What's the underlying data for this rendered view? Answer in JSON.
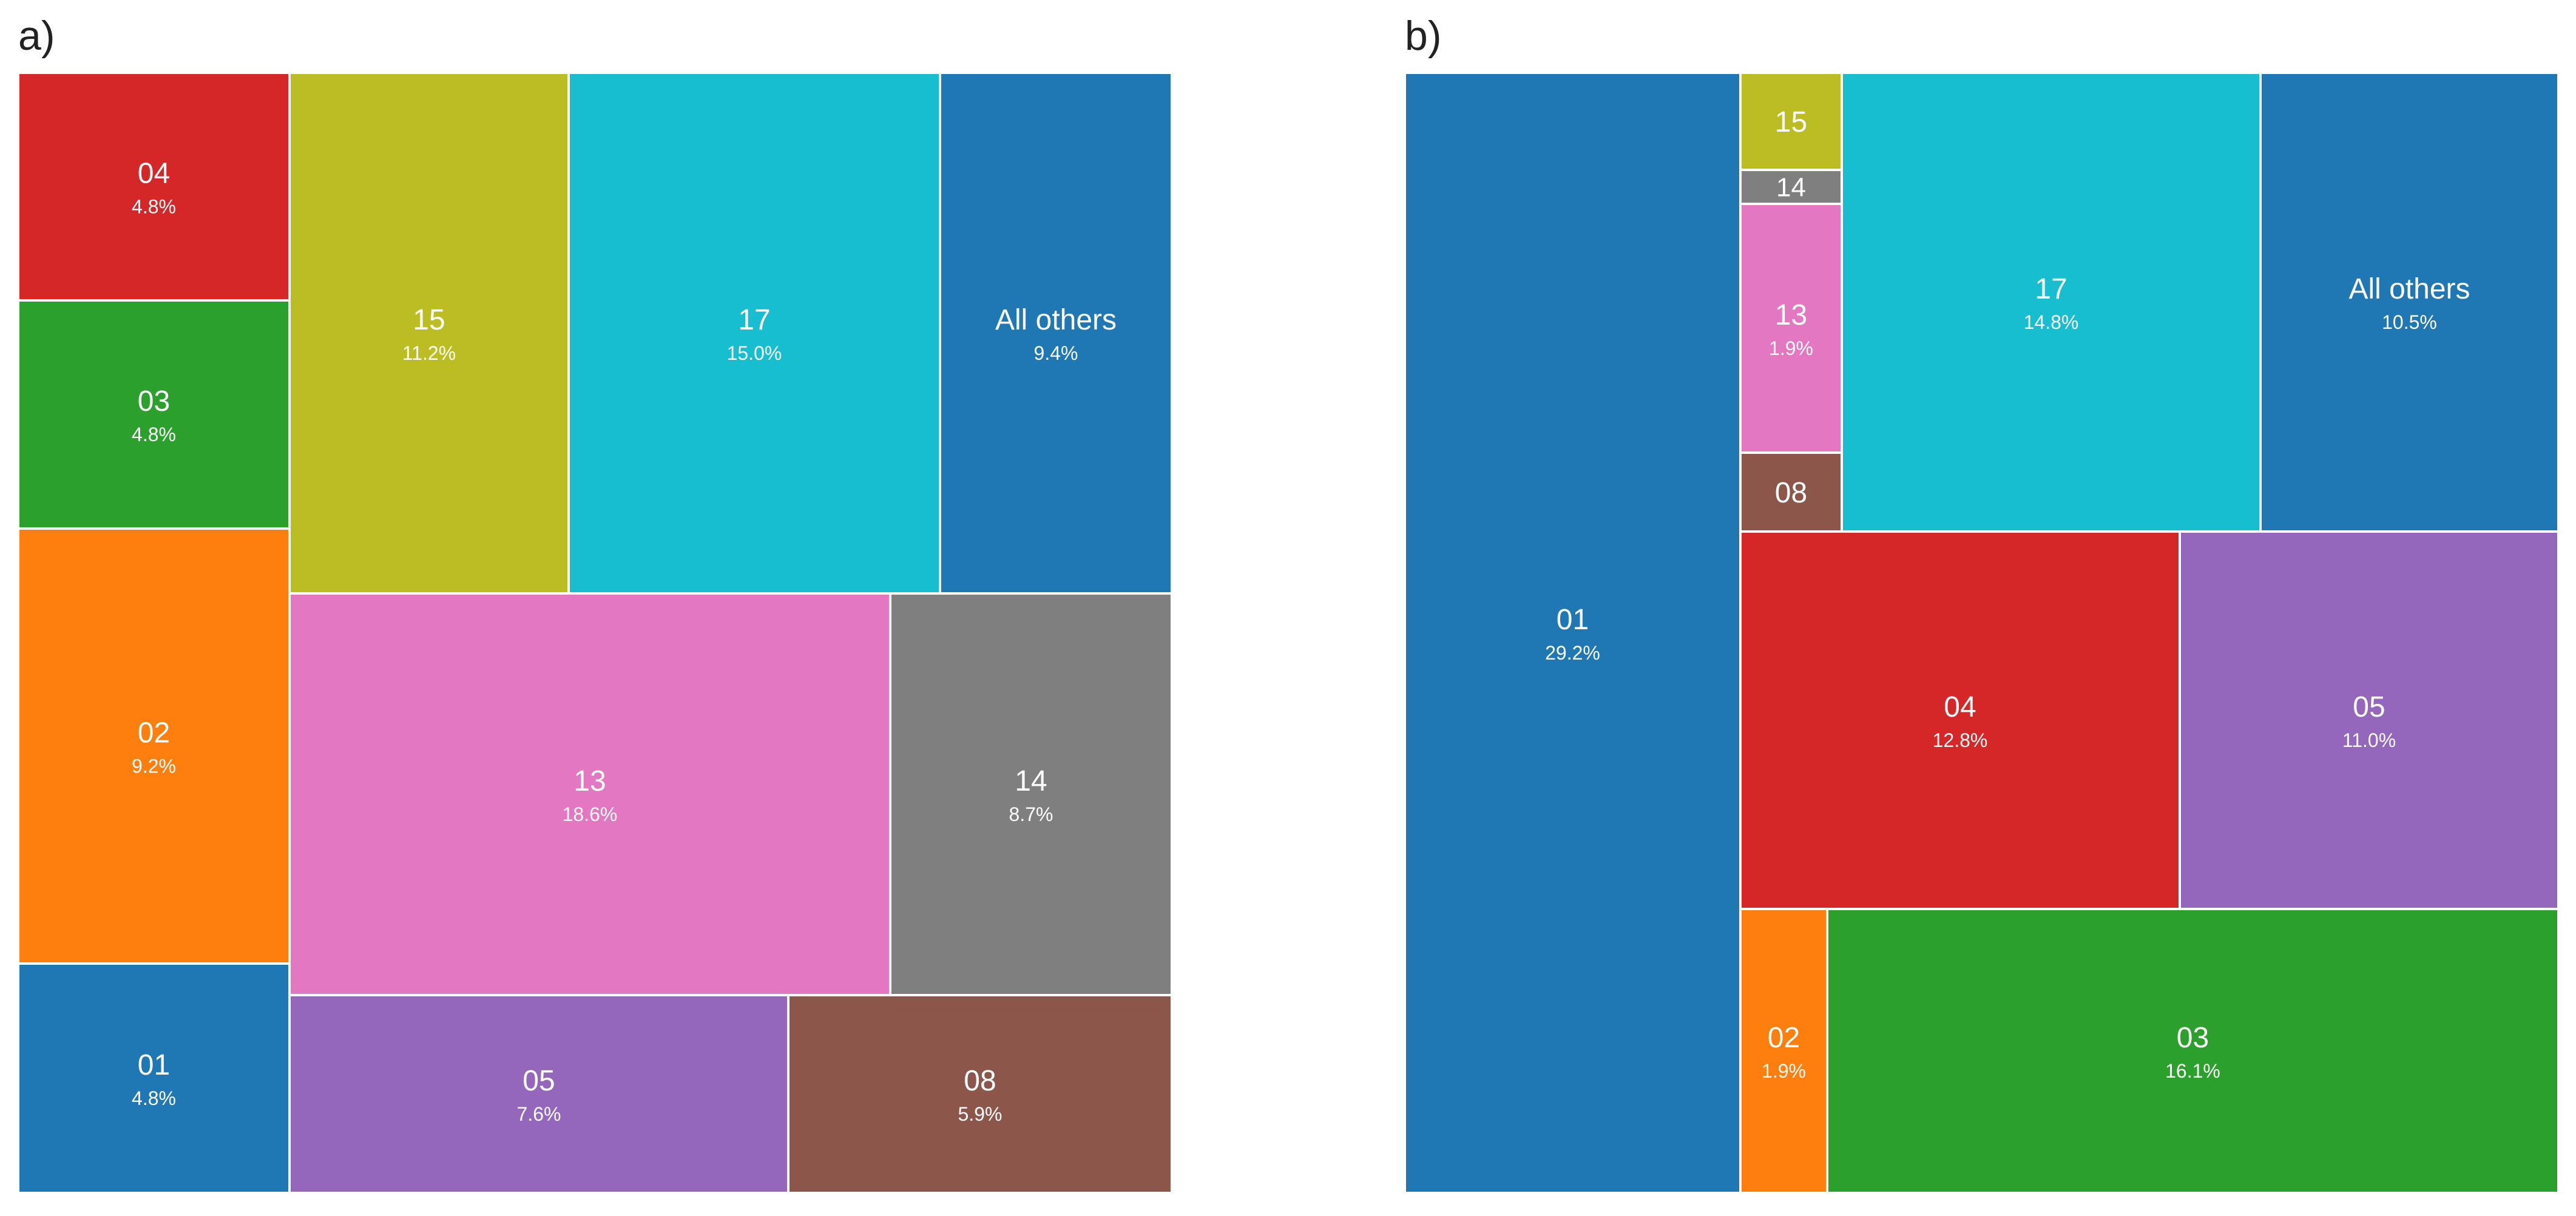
{
  "chart_data": [
    {
      "type": "treemap",
      "panel_label": "a)",
      "tiles": [
        {
          "label": "04",
          "value_text": "4.8%",
          "value": 4.8,
          "color": "#d62728"
        },
        {
          "label": "03",
          "value_text": "4.8%",
          "value": 4.8,
          "color": "#2ca02c"
        },
        {
          "label": "02",
          "value_text": "9.2%",
          "value": 9.2,
          "color": "#ff7f0e"
        },
        {
          "label": "01",
          "value_text": "4.8%",
          "value": 4.8,
          "color": "#1f77b4"
        },
        {
          "label": "15",
          "value_text": "11.2%",
          "value": 11.2,
          "color": "#bcbd22"
        },
        {
          "label": "17",
          "value_text": "15.0%",
          "value": 15.0,
          "color": "#17becf"
        },
        {
          "label": "All others",
          "value_text": "9.4%",
          "value": 9.4,
          "color": "#1f77b4"
        },
        {
          "label": "13",
          "value_text": "18.6%",
          "value": 18.6,
          "color": "#e377c2"
        },
        {
          "label": "14",
          "value_text": "8.7%",
          "value": 8.7,
          "color": "#7f7f7f"
        },
        {
          "label": "05",
          "value_text": "7.6%",
          "value": 7.6,
          "color": "#9467bd"
        },
        {
          "label": "08",
          "value_text": "5.9%",
          "value": 5.9,
          "color": "#8c564b"
        }
      ]
    },
    {
      "type": "treemap",
      "panel_label": "b)",
      "tiles": [
        {
          "label": "01",
          "value_text": "29.2%",
          "value": 29.2,
          "color": "#1f77b4"
        },
        {
          "label": "15",
          "value_text": "",
          "value": null,
          "color": "#bcbd22"
        },
        {
          "label": "14",
          "value_text": "",
          "value": null,
          "color": "#7f7f7f"
        },
        {
          "label": "13",
          "value_text": "1.9%",
          "value": 1.9,
          "color": "#e377c2"
        },
        {
          "label": "08",
          "value_text": "",
          "value": null,
          "color": "#8c564b"
        },
        {
          "label": "17",
          "value_text": "14.8%",
          "value": 14.8,
          "color": "#17becf"
        },
        {
          "label": "All others",
          "value_text": "10.5%",
          "value": 10.5,
          "color": "#1f77b4"
        },
        {
          "label": "04",
          "value_text": "12.8%",
          "value": 12.8,
          "color": "#d62728"
        },
        {
          "label": "05",
          "value_text": "11.0%",
          "value": 11.0,
          "color": "#9467bd"
        },
        {
          "label": "02",
          "value_text": "1.9%",
          "value": 1.9,
          "color": "#ff7f0e"
        },
        {
          "label": "03",
          "value_text": "16.1%",
          "value": 16.1,
          "color": "#2ca02c"
        }
      ]
    }
  ]
}
